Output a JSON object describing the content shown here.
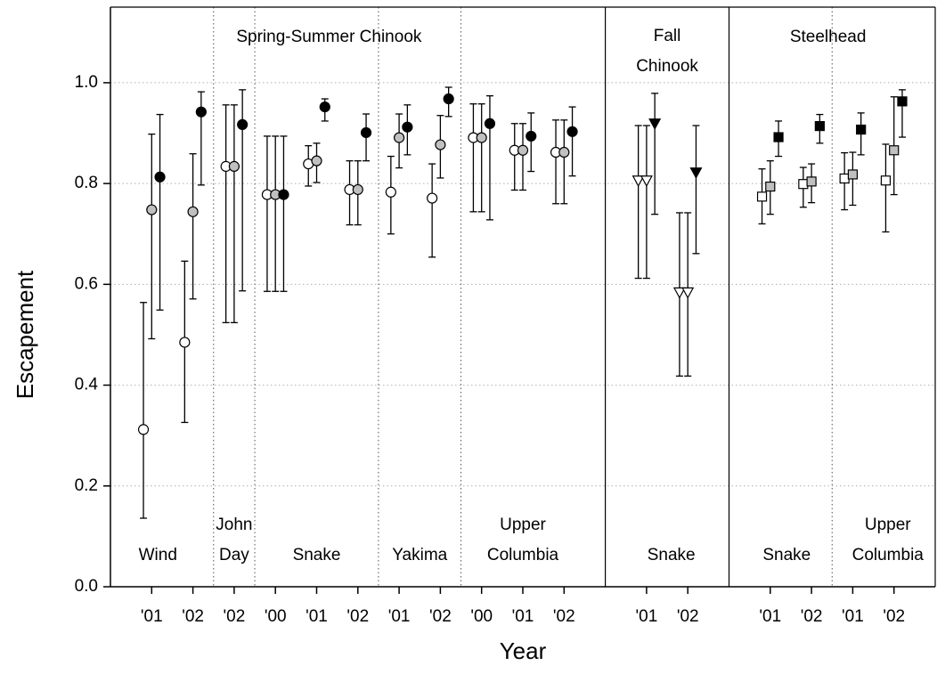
{
  "chart_data": {
    "type": "errorbar",
    "xlabel": "Year",
    "ylabel": "Escapement",
    "xlim": [
      0,
      20
    ],
    "ylim": [
      0,
      1.15
    ],
    "yticks": [
      {
        "value": 0,
        "label": "0.0"
      },
      0.2,
      0.4,
      0.6,
      0.8,
      {
        "value": 1,
        "label": "1.0"
      }
    ],
    "xticks": [
      {
        "value": 1,
        "label": "'01"
      },
      {
        "value": 2,
        "label": "'02"
      },
      {
        "value": 3,
        "label": "'02"
      },
      {
        "value": 4,
        "label": "'00"
      },
      {
        "value": 5,
        "label": "'01"
      },
      {
        "value": 6,
        "label": "'02"
      },
      {
        "value": 7,
        "label": "'01"
      },
      {
        "value": 8,
        "label": "'02"
      },
      {
        "value": 9,
        "label": "'00"
      },
      {
        "value": 10,
        "label": "'01"
      },
      {
        "value": 11,
        "label": "'02"
      },
      {
        "value": 13,
        "label": "'01"
      },
      {
        "value": 14,
        "label": "'02"
      },
      {
        "value": 16,
        "label": "'01"
      },
      {
        "value": 17,
        "label": "'02"
      },
      {
        "value": 18,
        "label": "'01"
      },
      {
        "value": 19,
        "label": "'02"
      }
    ],
    "grid": true,
    "groups": [
      [
        "Spring-Summer Chinook"
      ],
      [
        "Fall",
        "Chinook"
      ],
      [
        "Steelhead"
      ]
    ],
    "stocks": [
      [
        "Wind"
      ],
      [
        "John",
        "Day"
      ],
      [
        "Snake"
      ],
      [
        "Yakima"
      ],
      [
        "Upper",
        "Columbia"
      ],
      [
        "Snake"
      ],
      [
        "Snake"
      ],
      [
        "Upper",
        "Columbia"
      ]
    ],
    "series": [
      {
        "marker": "circle",
        "color": "#ffffff",
        "x": [
          0.8,
          1.8,
          2.8,
          3.8,
          4.8,
          5.8,
          6.8,
          7.8,
          8.8,
          9.8,
          10.8
        ],
        "values": [
          0.312,
          0.485,
          0.834,
          0.778,
          0.839,
          0.788,
          0.783,
          0.771,
          0.891,
          0.866,
          0.862
        ],
        "lower": [
          0.136,
          0.326,
          0.524,
          0.586,
          0.795,
          0.718,
          0.7,
          0.654,
          0.744,
          0.787,
          0.76
        ],
        "upper": [
          0.564,
          0.646,
          0.956,
          0.894,
          0.875,
          0.845,
          0.854,
          0.839,
          0.958,
          0.919,
          0.926
        ]
      },
      {
        "marker": "circle",
        "color": "#c0c0c0",
        "x": [
          1,
          2,
          3,
          4,
          5,
          6,
          7,
          8,
          9,
          10,
          11
        ],
        "values": [
          0.748,
          0.744,
          0.834,
          0.778,
          0.845,
          0.788,
          0.891,
          0.877,
          0.891,
          0.866,
          0.862
        ],
        "lower": [
          0.492,
          0.571,
          0.524,
          0.586,
          0.802,
          0.718,
          0.831,
          0.811,
          0.744,
          0.787,
          0.76
        ],
        "upper": [
          0.898,
          0.859,
          0.956,
          0.894,
          0.88,
          0.845,
          0.938,
          0.935,
          0.958,
          0.919,
          0.926
        ]
      },
      {
        "marker": "circle",
        "color": "#000000",
        "x": [
          1.2,
          2.2,
          3.2,
          4.2,
          5.2,
          6.2,
          7.2,
          8.2,
          9.2,
          10.2,
          11.2
        ],
        "values": [
          0.813,
          0.942,
          0.917,
          0.778,
          0.952,
          0.901,
          0.912,
          0.968,
          0.919,
          0.894,
          0.903
        ],
        "lower": [
          0.549,
          0.797,
          0.587,
          0.586,
          0.924,
          0.845,
          0.857,
          0.933,
          0.728,
          0.824,
          0.815
        ],
        "upper": [
          0.937,
          0.982,
          0.986,
          0.894,
          0.968,
          0.938,
          0.956,
          0.991,
          0.974,
          0.94,
          0.952
        ]
      },
      {
        "marker": "triangle",
        "color": "#ffffff",
        "x": [
          12.8,
          13.8
        ],
        "values": [
          0.806,
          0.584
        ],
        "lower": [
          0.612,
          0.418
        ],
        "upper": [
          0.915,
          0.742
        ]
      },
      {
        "marker": "triangle",
        "color": "#ffffff",
        "x": [
          13,
          14
        ],
        "values": [
          0.806,
          0.584
        ],
        "lower": [
          0.612,
          0.418
        ],
        "upper": [
          0.915,
          0.742
        ]
      },
      {
        "marker": "triangle",
        "color": "#000000",
        "x": [
          13.2,
          14.2
        ],
        "values": [
          0.919,
          0.822
        ],
        "lower": [
          0.739,
          0.661
        ],
        "upper": [
          0.979,
          0.915
        ]
      },
      {
        "marker": "square",
        "color": "#ffffff",
        "x": [
          15.8,
          16.8,
          17.8,
          18.8
        ],
        "values": [
          0.774,
          0.799,
          0.81,
          0.806
        ],
        "lower": [
          0.72,
          0.753,
          0.748,
          0.704
        ],
        "upper": [
          0.829,
          0.832,
          0.861,
          0.878
        ]
      },
      {
        "marker": "square",
        "color": "#c0c0c0",
        "x": [
          16,
          17,
          18,
          19
        ],
        "values": [
          0.794,
          0.804,
          0.818,
          0.866
        ],
        "lower": [
          0.739,
          0.762,
          0.757,
          0.778
        ],
        "upper": [
          0.845,
          0.839,
          0.862,
          0.972
        ]
      },
      {
        "marker": "square",
        "color": "#000000",
        "x": [
          16.2,
          17.2,
          18.2,
          19.2
        ],
        "values": [
          0.892,
          0.914,
          0.907,
          0.963
        ],
        "lower": [
          0.854,
          0.88,
          0.857,
          0.892
        ],
        "upper": [
          0.924,
          0.937,
          0.94,
          0.986
        ]
      }
    ]
  }
}
